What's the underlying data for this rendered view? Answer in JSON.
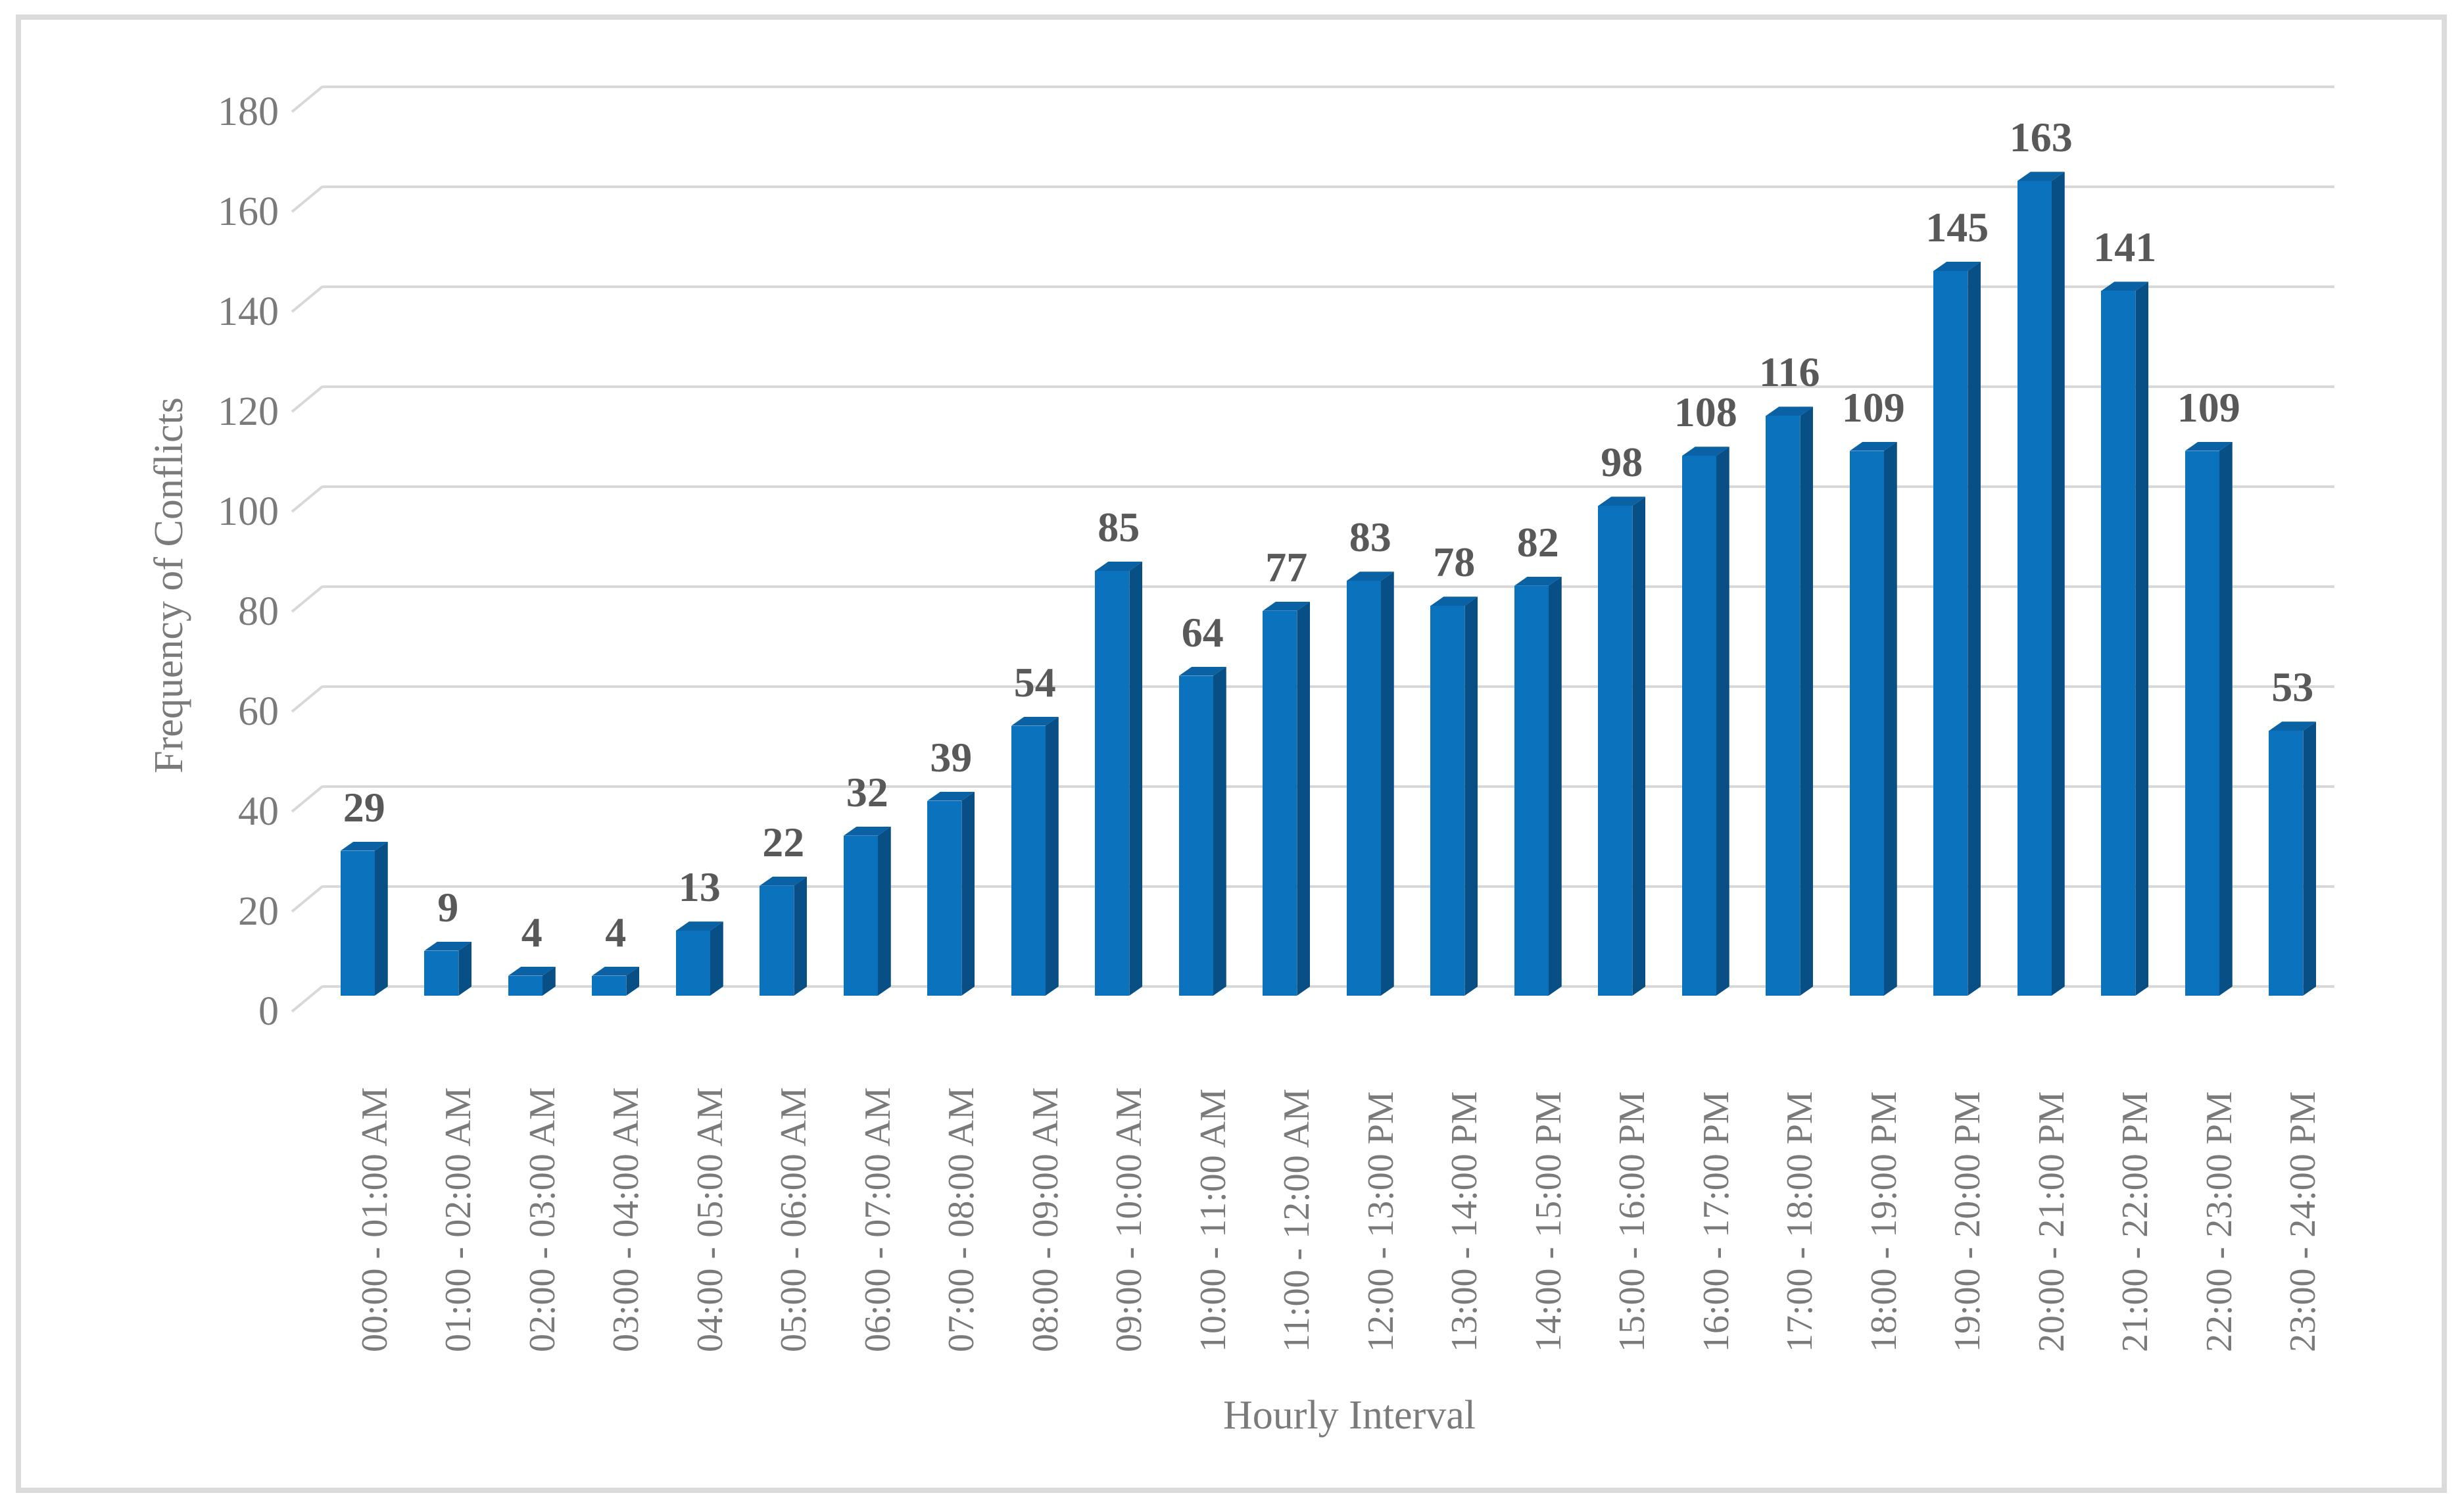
{
  "figure": {
    "background": "#ffffff",
    "border_color": "#dbdbdb"
  },
  "chart_data": {
    "type": "bar",
    "style": "3d-bevel-column",
    "title": "",
    "xlabel": "Hourly Interval",
    "ylabel": "Frequency of Conflicts",
    "categories": [
      "00:00 - 01:00 AM",
      "01:00 - 02:00 AM",
      "02:00 - 03:00 AM",
      "03:00 - 04:00 AM",
      "04:00 - 05:00 AM",
      "05:00 - 06:00 AM",
      "06:00 - 07:00 AM",
      "07:00 - 08:00 AM",
      "08:00 - 09:00 AM",
      "09:00 - 10:00 AM",
      "10:00 - 11:00 AM",
      "11:00 - 12:00 AM",
      "12:00 - 13:00 PM",
      "13:00 - 14:00 PM",
      "14:00 - 15:00 PM",
      "15:00 - 16:00 PM",
      "16:00 - 17:00 PM",
      "17:00 - 18:00 PM",
      "18:00 - 19:00 PM",
      "19:00 - 20:00 PM",
      "20:00 - 21:00 PM",
      "21:00 - 22:00 PM",
      "22:00 - 23:00 PM",
      "23:00 - 24:00 PM"
    ],
    "values": [
      29,
      9,
      4,
      4,
      13,
      22,
      32,
      39,
      54,
      85,
      64,
      77,
      83,
      78,
      82,
      98,
      108,
      116,
      109,
      145,
      163,
      141,
      109,
      53
    ],
    "data_labels_shown": true,
    "ylim": [
      0,
      180
    ],
    "ytick_step": 20,
    "yticks": [
      0,
      20,
      40,
      60,
      80,
      100,
      120,
      140,
      160,
      180
    ],
    "grid": true,
    "legend_position": "none",
    "colors": {
      "bar_front": "#0b72be",
      "bar_top": "#0a62a4",
      "bar_side": "#084f86",
      "grid": "#d8d8d8",
      "tick_text": "#7a7a7a",
      "data_label_text": "#595959"
    }
  }
}
